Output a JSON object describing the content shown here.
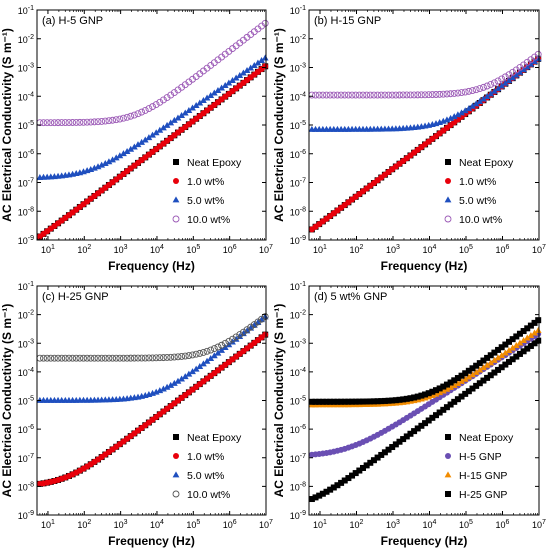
{
  "chart_data": [
    {
      "type": "scatter",
      "title": "(a) H-5 GNP",
      "xlabel": "Frequency (Hz)",
      "ylabel": "AC Electrical Conductivity (S m⁻¹)",
      "xscale": "log",
      "yscale": "log",
      "xlim": [
        5,
        10000000
      ],
      "ylim": [
        1e-09,
        0.1
      ],
      "legend": "bottom-right",
      "series": [
        {
          "name": "Neat Epoxy",
          "marker": "square",
          "color": "#000000",
          "sigma0": 1e-10,
          "slope": 0.96,
          "c": 2.2e-10
        },
        {
          "name": "1.0 wt%",
          "marker": "circle",
          "color": "#e8000b",
          "sigma0": 1e-10,
          "slope": 0.96,
          "c": 2.2e-10
        },
        {
          "name": "5.0 wt%",
          "marker": "triangle",
          "color": "#1f4fbf",
          "sigma0": 1.4e-07,
          "slope": 0.87,
          "c": 1.8e-09
        },
        {
          "name": "10.0 wt%",
          "marker": "open-circle",
          "color": "#9b59b6",
          "sigma0": 1.2e-05,
          "slope": 0.98,
          "c": 5e-09
        }
      ]
    },
    {
      "type": "scatter",
      "title": "(b) H-15 GNP",
      "xlabel": "Frequency (Hz)",
      "ylabel": "AC Electrical Conductivity (S m⁻¹)",
      "xscale": "log",
      "yscale": "log",
      "xlim": [
        5,
        10000000
      ],
      "ylim": [
        1e-09,
        0.1
      ],
      "legend": "bottom-right",
      "series": [
        {
          "name": "Neat Epoxy",
          "marker": "square",
          "color": "#000000",
          "sigma0": 1e-10,
          "slope": 0.96,
          "c": 4e-10
        },
        {
          "name": "1.0 wt%",
          "marker": "circle",
          "color": "#e8000b",
          "sigma0": 1e-10,
          "slope": 0.96,
          "c": 4e-10
        },
        {
          "name": "5.0 wt%",
          "marker": "triangle",
          "color": "#1f4fbf",
          "sigma0": 7e-06,
          "slope": 0.96,
          "c": 4e-10
        },
        {
          "name": "10.0 wt%",
          "marker": "open-circle",
          "color": "#9b59b6",
          "sigma0": 0.00011,
          "slope": 0.98,
          "c": 4e-10
        }
      ]
    },
    {
      "type": "scatter",
      "title": "(c) H-25 GNP",
      "xlabel": "Frequency (Hz)",
      "ylabel": "AC Electrical Conductivity (S m⁻¹)",
      "xscale": "log",
      "yscale": "log",
      "xlim": [
        5,
        10000000
      ],
      "ylim": [
        1e-09,
        0.1
      ],
      "legend": "bottom-right",
      "series": [
        {
          "name": "Neat Epoxy",
          "marker": "square",
          "color": "#000000",
          "sigma0": 1e-08,
          "slope": 0.96,
          "c": 4e-10
        },
        {
          "name": "1.0 wt%",
          "marker": "circle",
          "color": "#e8000b",
          "sigma0": 1e-08,
          "slope": 0.96,
          "c": 4e-10
        },
        {
          "name": "5.0 wt%",
          "marker": "triangle",
          "color": "#1f4fbf",
          "sigma0": 1e-05,
          "slope": 0.98,
          "c": 1.2e-09
        },
        {
          "name": "10.0 wt%",
          "marker": "open-circle",
          "color": "#555555",
          "sigma0": 0.0003,
          "slope": 0.98,
          "c": 1.2e-09
        }
      ]
    },
    {
      "type": "scatter",
      "title": "(d) 5 wt% GNP",
      "xlabel": "Frequency (Hz)",
      "ylabel": "AC Electrical Conductivity (S m⁻¹)",
      "xscale": "log",
      "yscale": "log",
      "xlim": [
        5,
        10000000
      ],
      "ylim": [
        1e-09,
        0.1
      ],
      "legend": "bottom-right",
      "series": [
        {
          "name": "Neat Epoxy",
          "marker": "square",
          "color": "#000000",
          "sigma0": 1.5e-09,
          "slope": 0.93,
          "c": 4e-10
        },
        {
          "name": "H-5 GNP",
          "marker": "circle",
          "color": "#6a4fb3",
          "sigma0": 1.1e-07,
          "slope": 0.82,
          "c": 4e-09
        },
        {
          "name": "H-15 GNP",
          "marker": "triangle",
          "color": "#f28c00",
          "sigma0": 7e-06,
          "slope": 0.88,
          "c": 2e-09
        },
        {
          "name": "H-25 GNP",
          "marker": "square",
          "color": "#000000",
          "sigma0": 9e-06,
          "slope": 0.95,
          "c": 1.5e-09
        }
      ]
    }
  ]
}
